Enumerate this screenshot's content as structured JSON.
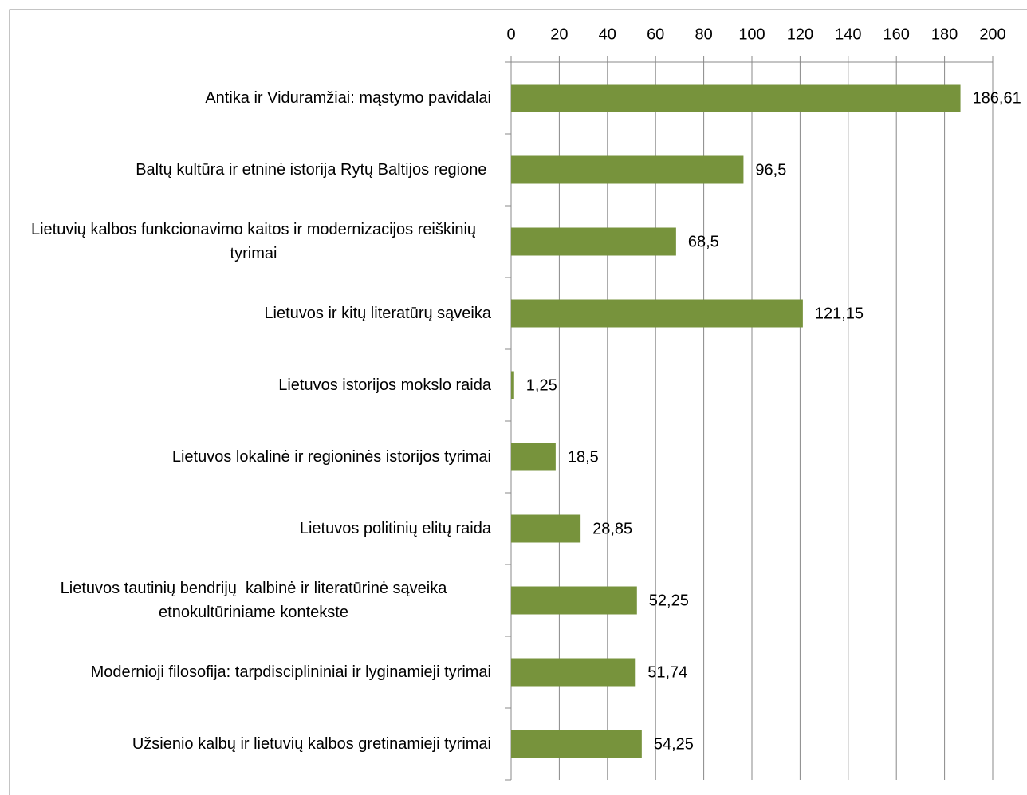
{
  "chart_data": {
    "type": "bar",
    "orientation": "horizontal",
    "categories": [
      "Antika ir Viduramžiai: mąstymo pavidalai",
      "Baltų kultūra ir etninė istorija Rytų Baltijos regione ",
      "Lietuvių kalbos funkcionavimo kaitos ir modernizacijos reiškinių tyrimai",
      "Lietuvos ir kitų literatūrų sąveika",
      "Lietuvos istorijos mokslo raida",
      "Lietuvos lokalinė ir regioninės istorijos tyrimai",
      "Lietuvos politinių elitų raida",
      "Lietuvos tautinių bendrijų  kalbinė ir literatūrinė sąveika etnokultūriniame kontekste",
      "Modernioji filosofija: tarpdisciplininiai ir lyginamieji tyrimai",
      "Užsienio kalbų ir lietuvių kalbos gretinamieji tyrimai"
    ],
    "values": [
      186.61,
      96.5,
      68.5,
      121.15,
      1.25,
      18.5,
      28.85,
      52.25,
      51.74,
      54.25
    ],
    "value_labels": [
      "186,61",
      "96,5",
      "68,5",
      "121,15",
      "1,25",
      "18,5",
      "28,85",
      "52,25",
      "51,74",
      "54,25"
    ],
    "color": "#77933c",
    "xlim": [
      0,
      200
    ],
    "xticks": [
      0,
      20,
      40,
      60,
      80,
      100,
      120,
      140,
      160,
      180,
      200
    ],
    "grid": true
  }
}
